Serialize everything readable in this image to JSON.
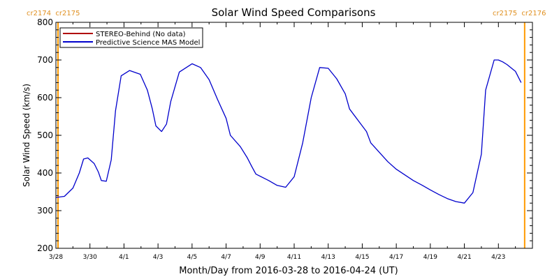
{
  "chart_data": {
    "type": "line",
    "title": "Solar Wind Speed Comparisons",
    "xlabel": "Month/Day from 2016-03-28 to 2016-04-24 (UT)",
    "ylabel": "Solar Wind Speed (km/s)",
    "xlim": [
      "2016-03-28",
      "2016-04-25"
    ],
    "ylim": [
      200,
      800
    ],
    "x_tick_labels": [
      "3/28",
      "3/30",
      "4/1",
      "4/3",
      "4/5",
      "4/7",
      "4/9",
      "4/11",
      "4/13",
      "4/15",
      "4/17",
      "4/19",
      "4/21",
      "4/23"
    ],
    "y_tick_labels": [
      "200",
      "300",
      "400",
      "500",
      "600",
      "700",
      "800"
    ],
    "legend_position": "top-left",
    "grid": false,
    "carrington_labels": {
      "left": "cr2174  cr2175",
      "right": "cr2175  cr2176"
    },
    "carrington_marker_dates": [
      "2016-03-28 03:00",
      "2016-04-24 13:00"
    ],
    "series": [
      {
        "name": "STEREO-Behind (No data)",
        "color": "#b00000",
        "x": [],
        "y": []
      },
      {
        "name": "Predictive Science MAS Model",
        "color": "#0000cc",
        "x": [
          "2016-03-28 00:00",
          "2016-03-28 12:00",
          "2016-03-29 00:00",
          "2016-03-29 09:00",
          "2016-03-29 15:00",
          "2016-03-29 21:00",
          "2016-03-30 06:00",
          "2016-03-30 12:00",
          "2016-03-30 16:00",
          "2016-03-30 23:00",
          "2016-03-31 06:00",
          "2016-03-31 12:00",
          "2016-03-31 20:00",
          "2016-04-01 08:00",
          "2016-04-01 23:00",
          "2016-04-02 09:00",
          "2016-04-02 16:00",
          "2016-04-02 21:00",
          "2016-04-03 05:00",
          "2016-04-03 12:00",
          "2016-04-03 18:00",
          "2016-04-04 06:00",
          "2016-04-05 00:00",
          "2016-04-05 12:00",
          "2016-04-06 00:00",
          "2016-04-06 12:00",
          "2016-04-07 00:00",
          "2016-04-07 06:00",
          "2016-04-07 20:00",
          "2016-04-08 06:00",
          "2016-04-08 12:00",
          "2016-04-08 18:00",
          "2016-04-09 12:00",
          "2016-04-10 00:00",
          "2016-04-10 12:00",
          "2016-04-11 00:00",
          "2016-04-11 12:00",
          "2016-04-12 00:00",
          "2016-04-12 12:00",
          "2016-04-13 00:00",
          "2016-04-13 12:00",
          "2016-04-14 00:00",
          "2016-04-14 06:00",
          "2016-04-14 18:00",
          "2016-04-15 06:00",
          "2016-04-15 12:00",
          "2016-04-16 00:00",
          "2016-04-16 12:00",
          "2016-04-17 00:00",
          "2016-04-17 12:00",
          "2016-04-18 00:00",
          "2016-04-18 12:00",
          "2016-04-19 00:00",
          "2016-04-19 12:00",
          "2016-04-20 00:00",
          "2016-04-20 12:00",
          "2016-04-21 00:00",
          "2016-04-21 12:00",
          "2016-04-22 00:00",
          "2016-04-22 06:00",
          "2016-04-22 18:00",
          "2016-04-23 00:00",
          "2016-04-23 06:00",
          "2016-04-23 12:00",
          "2016-04-24 00:00",
          "2016-04-24 08:00"
        ],
        "y": [
          335,
          338,
          360,
          400,
          437,
          440,
          425,
          402,
          380,
          378,
          435,
          565,
          658,
          672,
          662,
          620,
          570,
          525,
          510,
          530,
          590,
          668,
          690,
          680,
          648,
          595,
          545,
          500,
          470,
          440,
          418,
          397,
          380,
          367,
          362,
          390,
          480,
          600,
          680,
          678,
          650,
          610,
          570,
          540,
          510,
          480,
          455,
          430,
          410,
          395,
          380,
          368,
          355,
          343,
          332,
          324,
          320,
          348,
          450,
          620,
          700,
          700,
          695,
          688,
          670,
          640
        ]
      }
    ]
  }
}
